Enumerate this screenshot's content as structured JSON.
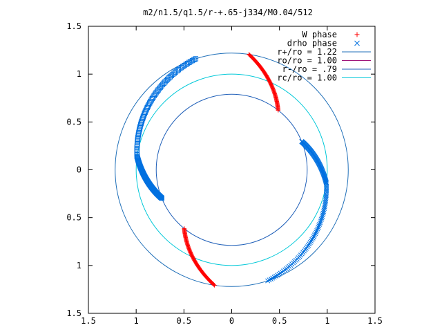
{
  "chart_data": {
    "type": "scatter",
    "title": "m2/n1.5/q1.5/r-+.65-j334/M0.04/512",
    "xlim": [
      -1.5,
      1.5
    ],
    "ylim": [
      -1.5,
      1.5
    ],
    "x_ticks": [
      -1.5,
      -1,
      -0.5,
      0,
      0.5,
      1,
      1.5
    ],
    "y_ticks": [
      -1.5,
      -1,
      -0.5,
      0,
      0.5,
      1,
      1.5
    ],
    "x_tick_labels": [
      "1.5",
      "1",
      "0.5",
      "0",
      "0.5",
      "1",
      "1.5"
    ],
    "y_tick_labels": [
      "1.5",
      "1",
      "0.5",
      "0",
      "0.5",
      "1",
      "1.5"
    ],
    "grid": false,
    "legend_position": "top-right",
    "legend": [
      {
        "label": "W phase",
        "marker": "+",
        "color": "#ff0000"
      },
      {
        "label": "drho phase",
        "marker": "x",
        "color": "#0070e0"
      },
      {
        "label": "r+/ro = 1.22",
        "line": true,
        "color": "#1f6fb8"
      },
      {
        "label": "ro/ro = 1.00",
        "line": true,
        "color": "#a0147a"
      },
      {
        "label": "r-/ro = .79",
        "line": true,
        "color": "#1f5fb8"
      },
      {
        "label": "rc/ro = 1.00",
        "line": true,
        "color": "#00c8d8"
      }
    ],
    "circles": [
      {
        "name": "r+/ro = 1.22",
        "radius": 1.22,
        "color": "#1f6fb8"
      },
      {
        "name": "rc/ro = 1.00",
        "radius": 1.0,
        "color": "#00c8d8"
      },
      {
        "name": "r-/ro = .79",
        "radius": 0.79,
        "color": "#1f5fb8"
      }
    ],
    "series": [
      {
        "name": "W phase",
        "marker": "+",
        "color": "#ff0000",
        "arcs": [
          {
            "r_start": 1.22,
            "r_end": 0.79,
            "theta_start_deg": 81.5,
            "theta_end_deg": 52
          },
          {
            "r_start": 0.79,
            "r_end": 1.22,
            "theta_start_deg": -129,
            "theta_end_deg": -98.5
          }
        ]
      },
      {
        "name": "drho phase",
        "marker": "x",
        "color": "#0070e0",
        "arcs": [
          {
            "r_start": 0.79,
            "r_end": 1.0,
            "theta_start_deg": 22,
            "theta_end_deg": -8
          },
          {
            "r_start": 1.0,
            "r_end": 1.22,
            "theta_start_deg": -8,
            "theta_end_deg": -72
          }
        ]
      },
      {
        "name": "drho square markers",
        "marker": "square",
        "color": "#0070e0",
        "arcs": [
          {
            "r_start": 0.79,
            "r_end": 1.0,
            "theta_start_deg": -158,
            "theta_end_deg": -188
          },
          {
            "r_start": 1.0,
            "r_end": 1.22,
            "theta_start_deg": -188,
            "theta_end_deg": -252
          }
        ]
      }
    ]
  }
}
